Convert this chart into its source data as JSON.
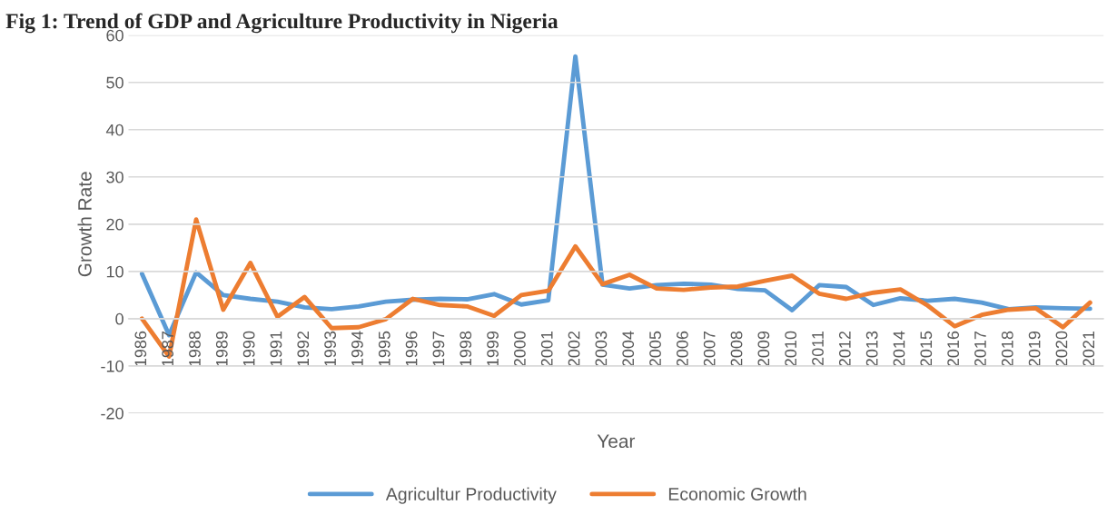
{
  "chart_data": {
    "type": "line",
    "title": "Fig 1: Trend of GDP and Agriculture Productivity in Nigeria",
    "xlabel": "Year",
    "ylabel": "Growth Rate",
    "categories": [
      "1986",
      "1987",
      "1988",
      "1989",
      "1990",
      "1991",
      "1992",
      "1993",
      "1994",
      "1995",
      "1996",
      "1997",
      "1998",
      "1999",
      "2000",
      "2001",
      "2002",
      "2003",
      "2004",
      "2005",
      "2006",
      "2007",
      "2008",
      "2009",
      "2010",
      "2011",
      "2012",
      "2013",
      "2014",
      "2015",
      "2016",
      "2017",
      "2018",
      "2019",
      "2020",
      "2021"
    ],
    "series": [
      {
        "name": "Agricultur Productivity",
        "color": "#5b9bd5",
        "values": [
          9.5,
          -3.5,
          9.8,
          5.0,
          4.2,
          3.6,
          2.4,
          2.0,
          2.6,
          3.6,
          4.0,
          4.2,
          4.1,
          5.2,
          3.0,
          3.9,
          55.5,
          7.2,
          6.4,
          7.1,
          7.4,
          7.2,
          6.3,
          6.0,
          1.8,
          7.1,
          6.7,
          2.9,
          4.3,
          3.8,
          4.2,
          3.4,
          2.0,
          2.4,
          2.2,
          2.1
        ]
      },
      {
        "name": "Economic Growth",
        "color": "#ed7d31",
        "values": [
          0.0,
          -8.0,
          21.0,
          1.9,
          11.8,
          0.4,
          4.6,
          -2.0,
          -1.8,
          -0.1,
          4.2,
          2.9,
          2.6,
          0.6,
          5.0,
          5.9,
          15.3,
          7.3,
          9.3,
          6.4,
          6.1,
          6.6,
          6.8,
          8.0,
          9.1,
          5.3,
          4.2,
          5.5,
          6.2,
          2.8,
          -1.6,
          0.8,
          1.9,
          2.2,
          -1.8,
          3.4
        ]
      }
    ],
    "ylim": [
      -20,
      60
    ],
    "yticks": [
      -20,
      -10,
      0,
      10,
      20,
      30,
      40,
      50,
      60
    ],
    "grid": "y",
    "legend": "bottom",
    "marker": "none",
    "line_style": "solid"
  }
}
